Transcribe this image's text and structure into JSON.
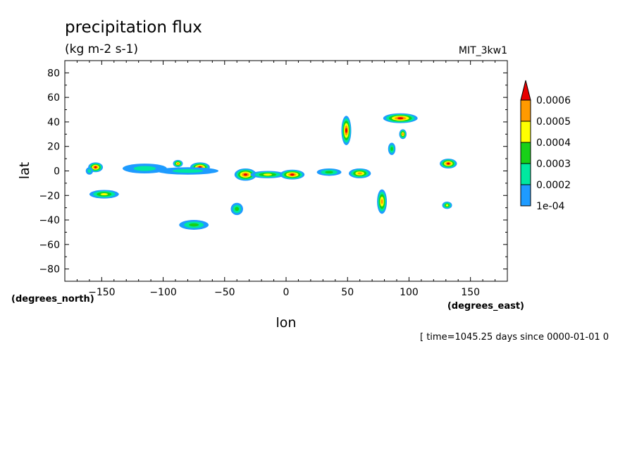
{
  "chart_data": {
    "type": "heatmap",
    "title": "precipitation flux",
    "subtitle": "(kg m-2 s-1)",
    "model_label": "MIT_3kw1",
    "xlabel": "lon",
    "ylabel": "lat",
    "x_units": "(degrees_east)",
    "y_units": "(degrees_north)",
    "xlim": [
      -180,
      180
    ],
    "ylim": [
      -90,
      90
    ],
    "x_ticks": [
      -150,
      -100,
      -50,
      0,
      50,
      100,
      150
    ],
    "y_ticks": [
      80,
      60,
      40,
      20,
      0,
      -20,
      -40,
      -60,
      -80
    ],
    "time_text": "[ time=1045.25 days since 0000-01-01 0",
    "colorbar": {
      "labels": [
        "1e-04",
        "0.0002",
        "0.0003",
        "0.0004",
        "0.0005",
        "0.0006"
      ],
      "levels": [
        0.0001,
        0.0002,
        0.0003,
        0.0004,
        0.0005,
        0.0006
      ],
      "colors": [
        "#1e9bff",
        "#00e8a0",
        "#18d018",
        "#ffff00",
        "#ff9a00",
        "#e80000"
      ]
    },
    "blobs": [
      {
        "lon": -155,
        "lat": 3,
        "rlon": 6,
        "rlat": 4,
        "level": 5
      },
      {
        "lon": -148,
        "lat": -19,
        "rlon": 12,
        "rlat": 3.5,
        "level": 3
      },
      {
        "lon": -115,
        "lat": 2,
        "rlon": 18,
        "rlat": 4,
        "level": 1
      },
      {
        "lon": -88,
        "lat": 6,
        "rlon": 4,
        "rlat": 3,
        "level": 4
      },
      {
        "lon": -70,
        "lat": 3,
        "rlon": 8,
        "rlat": 4,
        "level": 5
      },
      {
        "lon": -80,
        "lat": 0,
        "rlon": 25,
        "rlat": 3,
        "level": 1
      },
      {
        "lon": -33,
        "lat": -3,
        "rlon": 9,
        "rlat": 5,
        "level": 5
      },
      {
        "lon": -15,
        "lat": -3,
        "rlon": 14,
        "rlat": 3,
        "level": 3
      },
      {
        "lon": 5,
        "lat": -3,
        "rlon": 10,
        "rlat": 4,
        "level": 5
      },
      {
        "lon": 35,
        "lat": -1,
        "rlon": 10,
        "rlat": 3,
        "level": 2
      },
      {
        "lon": 60,
        "lat": -2,
        "rlon": 9,
        "rlat": 4,
        "level": 4
      },
      {
        "lon": 49,
        "lat": 33,
        "rlon": 4,
        "rlat": 12,
        "level": 5
      },
      {
        "lon": 93,
        "lat": 43,
        "rlon": 14,
        "rlat": 4,
        "level": 5
      },
      {
        "lon": 95,
        "lat": 30,
        "rlon": 3,
        "rlat": 4,
        "level": 4
      },
      {
        "lon": 86,
        "lat": 18,
        "rlon": 3,
        "rlat": 5,
        "level": 2
      },
      {
        "lon": 132,
        "lat": 6,
        "rlon": 7,
        "rlat": 4,
        "level": 5
      },
      {
        "lon": 78,
        "lat": -25,
        "rlon": 4,
        "rlat": 10,
        "level": 4
      },
      {
        "lon": 131,
        "lat": -28,
        "rlon": 4,
        "rlat": 3,
        "level": 3
      },
      {
        "lon": -40,
        "lat": -31,
        "rlon": 5,
        "rlat": 5,
        "level": 2
      },
      {
        "lon": -75,
        "lat": -44,
        "rlon": 12,
        "rlat": 4,
        "level": 2
      },
      {
        "lon": -160,
        "lat": 0,
        "rlon": 3,
        "rlat": 3,
        "level": 1
      }
    ],
    "grid": false
  }
}
